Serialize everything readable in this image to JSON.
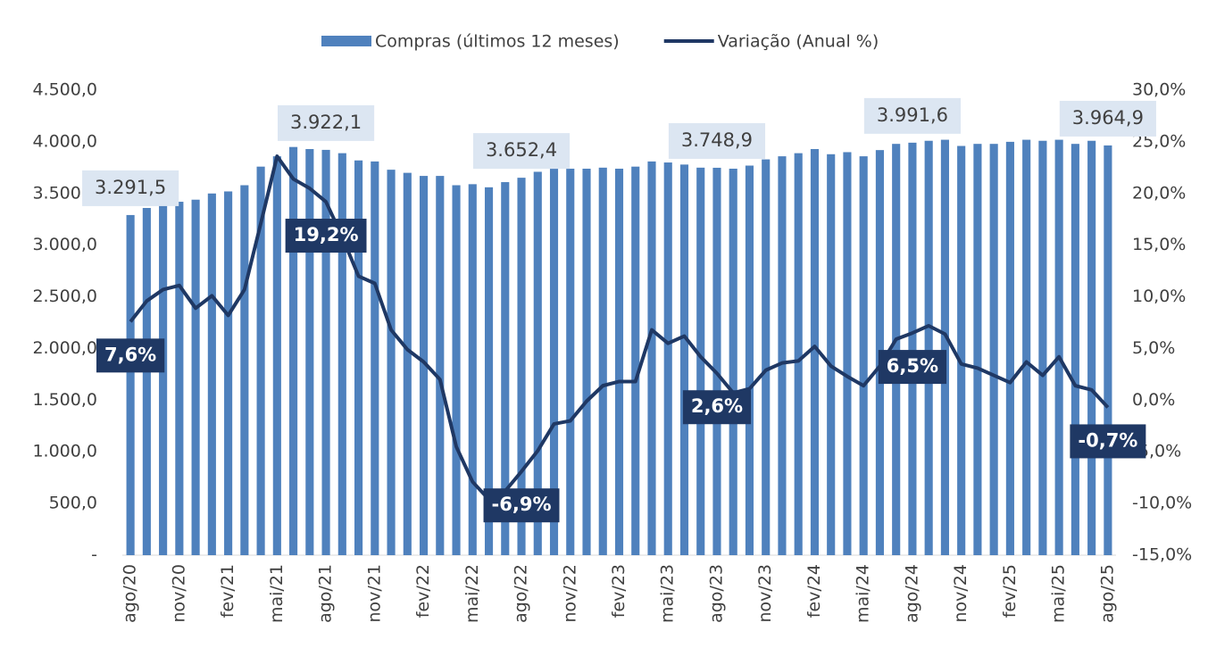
{
  "chart_data": {
    "type": "bar-line",
    "categories": [
      "ago/20",
      null,
      null,
      "nov/20",
      null,
      null,
      "fev/21",
      null,
      null,
      "mai/21",
      null,
      null,
      "ago/21",
      null,
      null,
      "nov/21",
      null,
      null,
      "fev/22",
      null,
      null,
      "mai/22",
      null,
      null,
      "ago/22",
      null,
      null,
      "nov/22",
      null,
      null,
      "fev/23",
      null,
      null,
      "mai/23",
      null,
      null,
      "ago/23",
      null,
      null,
      "nov/23",
      null,
      null,
      "fev/24",
      null,
      null,
      "mai/24",
      null,
      null,
      "ago/24",
      null,
      null,
      "nov/24",
      null,
      null,
      "fev/25",
      null,
      null,
      "mai/25",
      null,
      null,
      "ago/25"
    ],
    "series": [
      {
        "name": "Compras (últimos 12 meses)",
        "color": "#4f81bd",
        "type": "bar",
        "values": [
          3291.5,
          3360,
          3400,
          3420,
          3440,
          3500,
          3520,
          3580,
          3760,
          3860,
          3950,
          3930,
          3922.1,
          3890,
          3820,
          3810,
          3730,
          3700,
          3670,
          3670,
          3580,
          3590,
          3560,
          3610,
          3652.4,
          3710,
          3740,
          3740,
          3740,
          3750,
          3740,
          3760,
          3810,
          3800,
          3780,
          3750,
          3748.9,
          3740,
          3770,
          3830,
          3860,
          3890,
          3930,
          3880,
          3900,
          3860,
          3920,
          3980,
          3991.6,
          4010,
          4020,
          3960,
          3980,
          3980,
          4000,
          4020,
          4010,
          4020,
          3980,
          4010,
          3964.9
        ],
        "value_labels": [
          "3.291,5",
          null,
          null,
          null,
          null,
          null,
          null,
          null,
          null,
          null,
          null,
          null,
          "3.922,1",
          null,
          null,
          null,
          null,
          null,
          null,
          null,
          null,
          null,
          null,
          null,
          "3.652,4",
          null,
          null,
          null,
          null,
          null,
          null,
          null,
          null,
          null,
          null,
          null,
          "3.748,9",
          null,
          null,
          null,
          null,
          null,
          null,
          null,
          null,
          null,
          null,
          null,
          "3.991,6",
          null,
          null,
          null,
          null,
          null,
          null,
          null,
          null,
          null,
          null,
          null,
          "3.964,9"
        ]
      },
      {
        "name": "Variação (Anual %)",
        "color": "#1f3864",
        "type": "line",
        "axis": "y2",
        "values": [
          7.6,
          9.6,
          10.7,
          11.1,
          8.9,
          10.1,
          8.2,
          10.7,
          17.1,
          23.6,
          21.4,
          20.5,
          19.2,
          15.8,
          12.0,
          11.3,
          6.8,
          4.9,
          3.7,
          2.0,
          -4.5,
          -7.9,
          -9.6,
          -8.8,
          -6.9,
          -4.9,
          -2.3,
          -2.0,
          -0.1,
          1.4,
          1.8,
          1.8,
          6.8,
          5.5,
          6.2,
          4.2,
          2.6,
          0.7,
          1.1,
          2.9,
          3.6,
          3.8,
          5.2,
          3.3,
          2.3,
          1.4,
          3.3,
          5.9,
          6.5,
          7.2,
          6.4,
          3.5,
          3.1,
          2.4,
          1.7,
          3.7,
          2.4,
          4.2,
          1.4,
          1.0,
          -0.7
        ],
        "value_labels": [
          "7,6%",
          null,
          null,
          null,
          null,
          null,
          null,
          null,
          null,
          null,
          null,
          null,
          "19,2%",
          null,
          null,
          null,
          null,
          null,
          null,
          null,
          null,
          null,
          null,
          null,
          "-6,9%",
          null,
          null,
          null,
          null,
          null,
          null,
          null,
          null,
          null,
          null,
          null,
          "2,6%",
          null,
          null,
          null,
          null,
          null,
          null,
          null,
          null,
          null,
          null,
          null,
          "6,5%",
          null,
          null,
          null,
          null,
          null,
          null,
          null,
          null,
          null,
          null,
          null,
          "-0,7%"
        ]
      }
    ],
    "ylim": [
      0,
      4500
    ],
    "yticks": [
      {
        "value": 0,
        "label": "-"
      },
      {
        "value": 500,
        "label": "500,0"
      },
      {
        "value": 1000,
        "label": "1.000,0"
      },
      {
        "value": 1500,
        "label": "1.500,0"
      },
      {
        "value": 2000,
        "label": "2.000,0"
      },
      {
        "value": 2500,
        "label": "2.500,0"
      },
      {
        "value": 3000,
        "label": "3.000,0"
      },
      {
        "value": 3500,
        "label": "3.500,0"
      },
      {
        "value": 4000,
        "label": "4.000,0"
      },
      {
        "value": 4500,
        "label": "4.500,0"
      }
    ],
    "y2lim": [
      -15,
      30
    ],
    "y2ticks": [
      {
        "value": -15,
        "label": "-15,0%"
      },
      {
        "value": -10,
        "label": "-10,0%"
      },
      {
        "value": -5,
        "label": "-5,0%"
      },
      {
        "value": 0,
        "label": "0,0%"
      },
      {
        "value": 5,
        "label": "5,0%"
      },
      {
        "value": 10,
        "label": "10,0%"
      },
      {
        "value": 15,
        "label": "15,0%"
      },
      {
        "value": 20,
        "label": "20,0%"
      },
      {
        "value": 25,
        "label": "25,0%"
      },
      {
        "value": 30,
        "label": "30,0%"
      }
    ],
    "legend": "top"
  }
}
